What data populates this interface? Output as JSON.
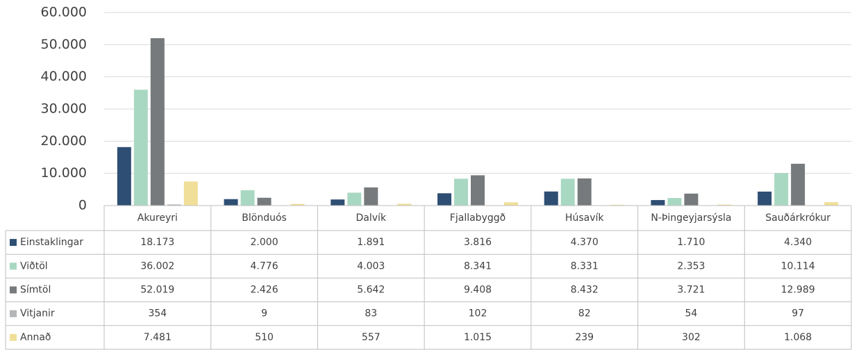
{
  "chart_data": {
    "type": "bar",
    "categories": [
      "Akureyri",
      "Blönduós",
      "Dalvík",
      "Fjallabyggð",
      "Húsavík",
      "N-Þingeyjarsýsla",
      "Sauðárkrókur"
    ],
    "series": [
      {
        "name": "Einstaklingar",
        "color": "#2e4e73",
        "values": [
          18173,
          2000,
          1891,
          3816,
          4370,
          1710,
          4340
        ],
        "value_labels": [
          "18.173",
          "2.000",
          "1.891",
          "3.816",
          "4.370",
          "1.710",
          "4.340"
        ]
      },
      {
        "name": "Viðtöl",
        "color": "#a9d8c2",
        "values": [
          36002,
          4776,
          4003,
          8341,
          8331,
          2353,
          10114
        ],
        "value_labels": [
          "36.002",
          "4.776",
          "4.003",
          "8.341",
          "8.331",
          "2.353",
          "10.114"
        ]
      },
      {
        "name": "Símtöl",
        "color": "#767a7c",
        "values": [
          52019,
          2426,
          5642,
          9408,
          8432,
          3721,
          12989
        ],
        "value_labels": [
          "52.019",
          "2.426",
          "5.642",
          "9.408",
          "8.432",
          "3.721",
          "12.989"
        ]
      },
      {
        "name": "Vitjanir",
        "color": "#b4b6b8",
        "values": [
          354,
          9,
          83,
          102,
          82,
          54,
          97
        ]
      },
      {
        "name": "Annað",
        "color": "#f0df98",
        "values": [
          7481,
          510,
          557,
          1015,
          239,
          302,
          1068
        ],
        "value_labels": [
          "7.481",
          "510",
          "557",
          "1.015",
          "239",
          "302",
          "1.068"
        ]
      }
    ],
    "ylim": [
      0,
      60000
    ],
    "yticks": [
      0,
      {
        "value": 10000,
        "label": "10.000"
      },
      {
        "value": 20000,
        "label": "20.000"
      },
      {
        "value": 30000,
        "label": "30.000"
      },
      {
        "value": 40000,
        "label": "40.000"
      },
      {
        "value": 50000,
        "label": "50.000"
      },
      {
        "value": 60000,
        "label": "60.000"
      }
    ],
    "grid": true
  }
}
